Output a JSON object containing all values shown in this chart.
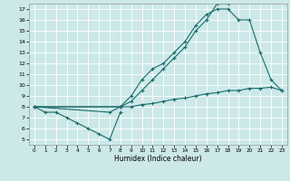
{
  "xlabel": "Humidex (Indice chaleur)",
  "bg_color": "#cce8e8",
  "grid_color": "#ffffff",
  "line_color": "#1a6b6b",
  "xlim": [
    -0.5,
    23.5
  ],
  "ylim": [
    4.5,
    17.5
  ],
  "xticks": [
    0,
    1,
    2,
    3,
    4,
    5,
    6,
    7,
    8,
    9,
    10,
    11,
    12,
    13,
    14,
    15,
    16,
    17,
    18,
    19,
    20,
    21,
    22,
    23
  ],
  "yticks": [
    5,
    6,
    7,
    8,
    9,
    10,
    11,
    12,
    13,
    14,
    15,
    16,
    17
  ],
  "line1_x": [
    0,
    1,
    2,
    3,
    4,
    5,
    6,
    7,
    8
  ],
  "line1_y": [
    8.0,
    7.5,
    7.5,
    7.0,
    6.5,
    6.0,
    5.5,
    5.0,
    7.5
  ],
  "line2_x": [
    0,
    7,
    8,
    9,
    10,
    11,
    12,
    13,
    14,
    15,
    16,
    17,
    18,
    19,
    20,
    21,
    22,
    23
  ],
  "line2_y": [
    8.0,
    7.5,
    8.0,
    9.0,
    10.5,
    11.5,
    12.0,
    13.0,
    14.0,
    15.5,
    16.5,
    17.0,
    17.0,
    16.0,
    16.0,
    13.0,
    10.5,
    9.5
  ],
  "line3_x": [
    0,
    8,
    9,
    10,
    11,
    12,
    13,
    14,
    15,
    16,
    17,
    18
  ],
  "line3_y": [
    8.0,
    8.0,
    8.5,
    9.5,
    10.5,
    11.5,
    12.5,
    13.5,
    15.0,
    16.0,
    17.5,
    17.5
  ],
  "line4_x": [
    0,
    8,
    9,
    10,
    11,
    12,
    13,
    14,
    15,
    16,
    17,
    18,
    19,
    20,
    21,
    22,
    23
  ],
  "line4_y": [
    8.0,
    8.0,
    8.0,
    8.2,
    8.3,
    8.5,
    8.7,
    8.8,
    9.0,
    9.2,
    9.3,
    9.5,
    9.5,
    9.7,
    9.7,
    9.8,
    9.5
  ]
}
